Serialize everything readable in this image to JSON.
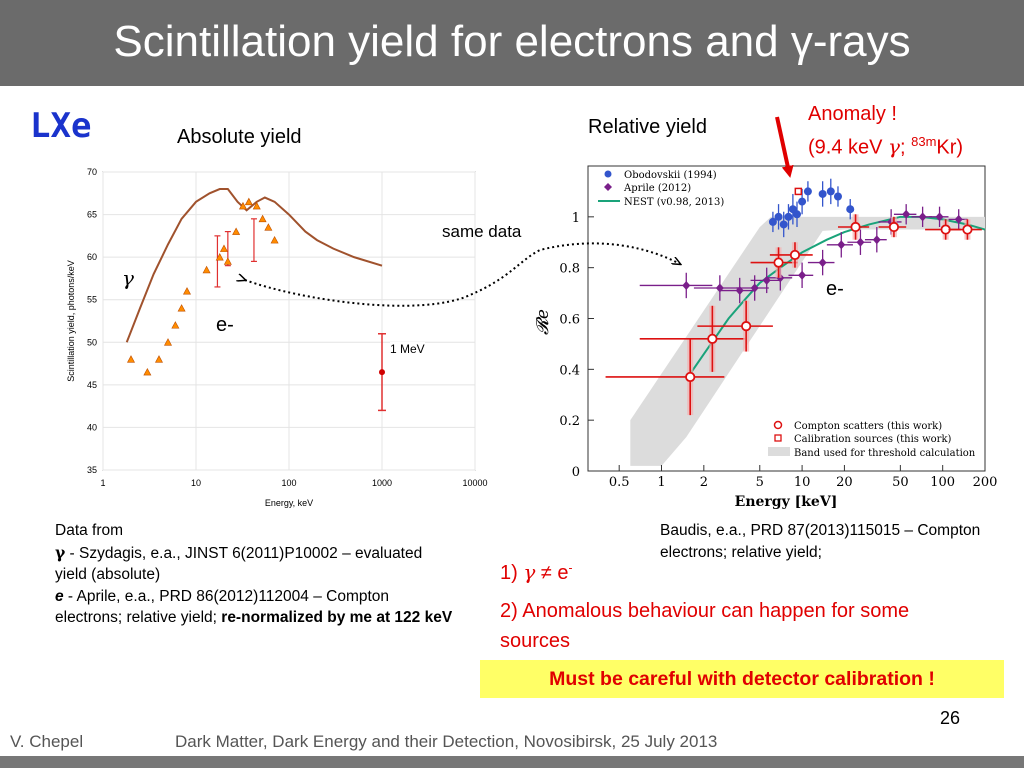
{
  "slide": {
    "title": "Scintillation yield for electrons and γ-rays",
    "tag": "LXe",
    "abs_caption": "Absolute yield",
    "rel_caption": "Relative yield",
    "anomaly_line1": "Anomaly !",
    "anomaly_line2_pre": "(9.4 keV ",
    "anomaly_gamma": "γ",
    "anomaly_sep": "; ",
    "anomaly_sup": "83m",
    "anomaly_kr": "Kr)",
    "same_data": "same data",
    "gamma_label": "γ",
    "e_label_left": "e-",
    "e_label_right": "e-",
    "mev_label": "1 MeV",
    "note_left": {
      "line1": "Data from",
      "gamma": "γ",
      "line2": " - Szydagis, e.a., JINST 6(2011)P10002 – evaluated yield (absolute)",
      "e_bold": "e",
      "line3": " - Aprile, e.a., PRD 86(2012)112004 – Compton electrons; relative yield; ",
      "bold_tail": "re-normalized by me at 122 keV"
    },
    "note_right": "Baudis, e.a., PRD 87(2013)115015 – Compton electrons; relative yield;",
    "point1_pre": "1) ",
    "point1_gamma": "γ",
    "point1_ne": " ≠ ",
    "point1_e": "e",
    "point1_sup": "-",
    "point2": "2) Anomalous behaviour can happen for some sources",
    "warning": "Must be careful with detector calibration !",
    "page_number": "26",
    "author": "V. Chepel",
    "talk": "Dark Matter, Dark Energy and their Detection, Novosibirsk, 25 July 2013"
  },
  "chart_data": [
    {
      "type": "line",
      "title": "",
      "xlabel": "Energy, keV",
      "ylabel": "Scintillation yield, photons/keV",
      "x_scale": "log",
      "xlim": [
        1,
        10000
      ],
      "ylim": [
        35,
        70
      ],
      "xticks": [
        "1",
        "10",
        "100",
        "1000",
        "10000"
      ],
      "yticks": [
        "35",
        "40",
        "45",
        "50",
        "55",
        "60",
        "65",
        "70"
      ],
      "colors": {
        "curve": "#a0522d",
        "triangles": "#ff8c00",
        "errors": "#e03030",
        "point": "#d00000"
      },
      "series": [
        {
          "name": "",
          "kind": "line",
          "x": [
            1.8,
            2.5,
            3.5,
            5,
            7,
            10,
            14,
            18,
            22,
            28,
            35,
            45,
            55,
            70,
            100,
            150,
            200,
            300,
            500,
            1000
          ],
          "y": [
            50,
            54,
            58,
            61.5,
            64.5,
            66.5,
            67.5,
            68.0,
            68.0,
            66.5,
            65.5,
            66.5,
            67.0,
            66.5,
            65.0,
            63.0,
            62.0,
            61.0,
            60.0,
            59.0
          ]
        },
        {
          "name": "",
          "kind": "triangles",
          "x": [
            2.0,
            3.0,
            4.0,
            5.0,
            6.0,
            7.0,
            8.0,
            13.0,
            18.0,
            20.0,
            22.0,
            27.0,
            32.0,
            37.0,
            45.0,
            52.0,
            60.0,
            70.0
          ],
          "y": [
            48.0,
            46.5,
            48.0,
            50.0,
            52.0,
            54.0,
            56.0,
            58.5,
            60.0,
            61.0,
            59.5,
            63.0,
            66.0,
            66.5,
            66.0,
            64.5,
            63.5,
            62.0
          ]
        },
        {
          "name": "",
          "kind": "errorbars",
          "x": [
            17.0,
            22.0,
            42.0
          ],
          "y": [
            59.5,
            61.0,
            62.0
          ],
          "yerr": [
            3.0,
            2.0,
            2.5
          ]
        },
        {
          "name": "",
          "kind": "point",
          "x": [
            1000
          ],
          "y": [
            46.5
          ],
          "yerr": [
            4.5
          ]
        }
      ]
    },
    {
      "type": "scatter",
      "title": "",
      "xlabel": "Energy [keV]",
      "ylabel": "𝓡e",
      "x_scale": "log",
      "xlim": [
        0.3,
        200
      ],
      "ylim": [
        0,
        1.2
      ],
      "xticks": [
        "0.5",
        "1",
        "2",
        "5",
        "10",
        "20",
        "50",
        "100",
        "200"
      ],
      "yticks": [
        "0",
        "0.2",
        "0.4",
        "0.6",
        "0.8",
        "1"
      ],
      "legend_top": [
        "Obodovskii (1994)",
        "Aprile (2012)",
        "NEST (v0.98, 2013)"
      ],
      "legend_bottom": [
        "Compton scatters (this work)",
        "Calibration sources (this work)",
        "Band used for threshold calculation"
      ],
      "colors": {
        "obodovskii": "#3355cc",
        "aprile": "#7a1f8a",
        "nest": "#1aa37a",
        "compton": "#dd1111",
        "band": "#dcdcdc"
      },
      "series": [
        {
          "name": "Obodovskii (1994)",
          "x": [
            6.2,
            6.8,
            7.4,
            8.0,
            8.6,
            9.2,
            10.0,
            11.0,
            14.0,
            16.0,
            18.0,
            22.0
          ],
          "y": [
            0.98,
            1.0,
            0.97,
            1.0,
            1.03,
            1.01,
            1.06,
            1.1,
            1.09,
            1.1,
            1.08,
            1.03
          ],
          "yerr": [
            0.04,
            0.05,
            0.05,
            0.05,
            0.06,
            0.05,
            0.05,
            0.04,
            0.05,
            0.05,
            0.04,
            0.04
          ]
        },
        {
          "name": "Aprile (2012)",
          "x": [
            1.5,
            2.6,
            3.6,
            4.6,
            5.6,
            7.0,
            10.0,
            14.0,
            19.0,
            26.0,
            34.0,
            43.0,
            55.0,
            72.0,
            95.0,
            130.0
          ],
          "y": [
            0.73,
            0.72,
            0.71,
            0.72,
            0.75,
            0.76,
            0.77,
            0.82,
            0.89,
            0.9,
            0.91,
            0.98,
            1.01,
            1.0,
            1.0,
            0.99
          ],
          "xerr": [
            0.8,
            0.9,
            1.0,
            1.2,
            1.3,
            1.5,
            2.0,
            3.0,
            4.0,
            5.0,
            6.0,
            8.0,
            10.0,
            12.0,
            15.0,
            20.0
          ],
          "yerr": [
            0.05,
            0.05,
            0.05,
            0.05,
            0.05,
            0.05,
            0.05,
            0.05,
            0.05,
            0.05,
            0.05,
            0.05,
            0.04,
            0.04,
            0.04,
            0.04
          ]
        },
        {
          "name": "Compton scatters (this work)",
          "x": [
            1.6,
            2.3,
            4.0,
            6.8,
            8.9,
            24.0,
            45.0,
            105.0,
            150.0
          ],
          "y": [
            0.37,
            0.52,
            0.57,
            0.82,
            0.85,
            0.96,
            0.96,
            0.95,
            0.95
          ],
          "yerr": [
            0.15,
            0.13,
            0.1,
            0.06,
            0.05,
            0.05,
            0.04,
            0.04,
            0.04
          ]
        },
        {
          "name": "Calibration sources (this work)",
          "x": [
            9.4
          ],
          "y": [
            1.1
          ]
        },
        {
          "name": "NEST (v0.98, 2013)",
          "x": [
            1.5,
            2,
            3,
            4,
            5,
            7,
            10,
            15,
            20,
            30,
            50,
            70,
            100,
            150,
            200
          ],
          "y": [
            0.36,
            0.46,
            0.6,
            0.68,
            0.74,
            0.8,
            0.86,
            0.91,
            0.94,
            0.97,
            1.0,
            1.0,
            0.99,
            0.97,
            0.95
          ]
        }
      ]
    }
  ]
}
